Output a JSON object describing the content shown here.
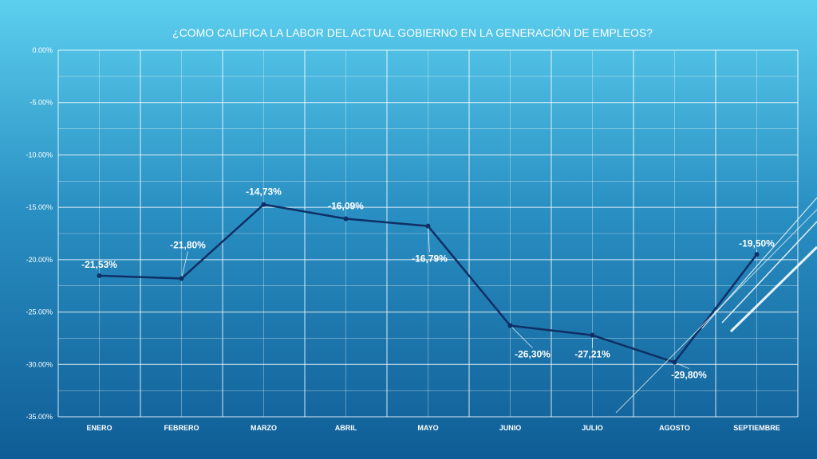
{
  "chart_data": {
    "type": "line",
    "title": "¿COMO CALIFICA LA LABOR DEL ACTUAL GOBIERNO EN LA GENERACIÓN DE EMPLEOS?",
    "categories": [
      "ENERO",
      "FEBRERO",
      "MARZO",
      "ABRIL",
      "MAYO",
      "JUNIO",
      "JULIO",
      "AGOSTO",
      "SEPTIEMBRE"
    ],
    "values": [
      -21.53,
      -21.8,
      -14.73,
      -16.09,
      -16.79,
      -26.3,
      -27.21,
      -29.8,
      -19.5
    ],
    "data_labels": [
      "-21,53%",
      "-21,80%",
      "-14,73%",
      "-16,09%",
      "-16,79%",
      "-26,30%",
      "-27,21%",
      "-29,80%",
      "-19,50%"
    ],
    "ylim": [
      -35,
      0
    ],
    "yticks": [
      "0.00%",
      "-5.00%",
      "-10.00%",
      "-15.00%",
      "-20.00%",
      "-25.00%",
      "-30.00%",
      "-35.00%"
    ],
    "ytick_values": [
      0,
      -5,
      -10,
      -15,
      -20,
      -25,
      -30,
      -35
    ],
    "grid": true,
    "legend": "none",
    "line_color": "#0f2f66",
    "grid_color": "#ffffff"
  }
}
